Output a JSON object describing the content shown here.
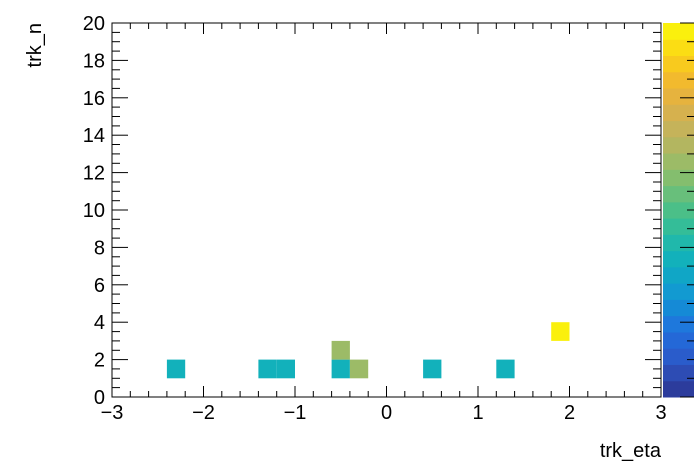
{
  "chart_data": {
    "type": "heatmap",
    "title": "",
    "xlabel": "trk_eta",
    "ylabel": "trk_n",
    "xlim": [
      -3,
      3
    ],
    "ylim": [
      0,
      20
    ],
    "x_ticks": [
      "−3",
      "−2",
      "−1",
      "0",
      "1",
      "2",
      "3"
    ],
    "y_ticks": [
      "0",
      "2",
      "4",
      "6",
      "8",
      "10",
      "12",
      "14",
      "16",
      "18",
      "20"
    ],
    "x_tick_values": [
      -3,
      -2,
      -1,
      0,
      1,
      2,
      3
    ],
    "y_tick_values": [
      0,
      2,
      4,
      6,
      8,
      10,
      12,
      14,
      16,
      18,
      20
    ],
    "bin_width_x": 0.2,
    "bin_width_y": 1,
    "z_range": [
      0,
      1
    ],
    "bins": [
      {
        "x0": -2.4,
        "y0": 1,
        "z": 0.35
      },
      {
        "x0": -1.4,
        "y0": 1,
        "z": 0.35
      },
      {
        "x0": -1.2,
        "y0": 1,
        "z": 0.35
      },
      {
        "x0": -0.6,
        "y0": 1,
        "z": 0.35
      },
      {
        "x0": -0.6,
        "y0": 2,
        "z": 0.63
      },
      {
        "x0": -0.4,
        "y0": 1,
        "z": 0.63
      },
      {
        "x0": 0.4,
        "y0": 1,
        "z": 0.35
      },
      {
        "x0": 1.2,
        "y0": 1,
        "z": 0.35
      },
      {
        "x0": 1.8,
        "y0": 3,
        "z": 1.0
      }
    ],
    "colorbar": {
      "colors": [
        "#2c3c9c",
        "#2d4cb4",
        "#2a5ccb",
        "#2468d7",
        "#1e78dc",
        "#158ad6",
        "#129ad1",
        "#10a6c6",
        "#12b1bb",
        "#20b8ab",
        "#34bd98",
        "#4bbf88",
        "#68bf7b",
        "#84be6e",
        "#9cbb67",
        "#b3b660",
        "#c5b35a",
        "#d6b14e",
        "#e6b33e",
        "#f2ba2e",
        "#f8ca1e",
        "#fbdd14",
        "#faf00d"
      ]
    }
  }
}
